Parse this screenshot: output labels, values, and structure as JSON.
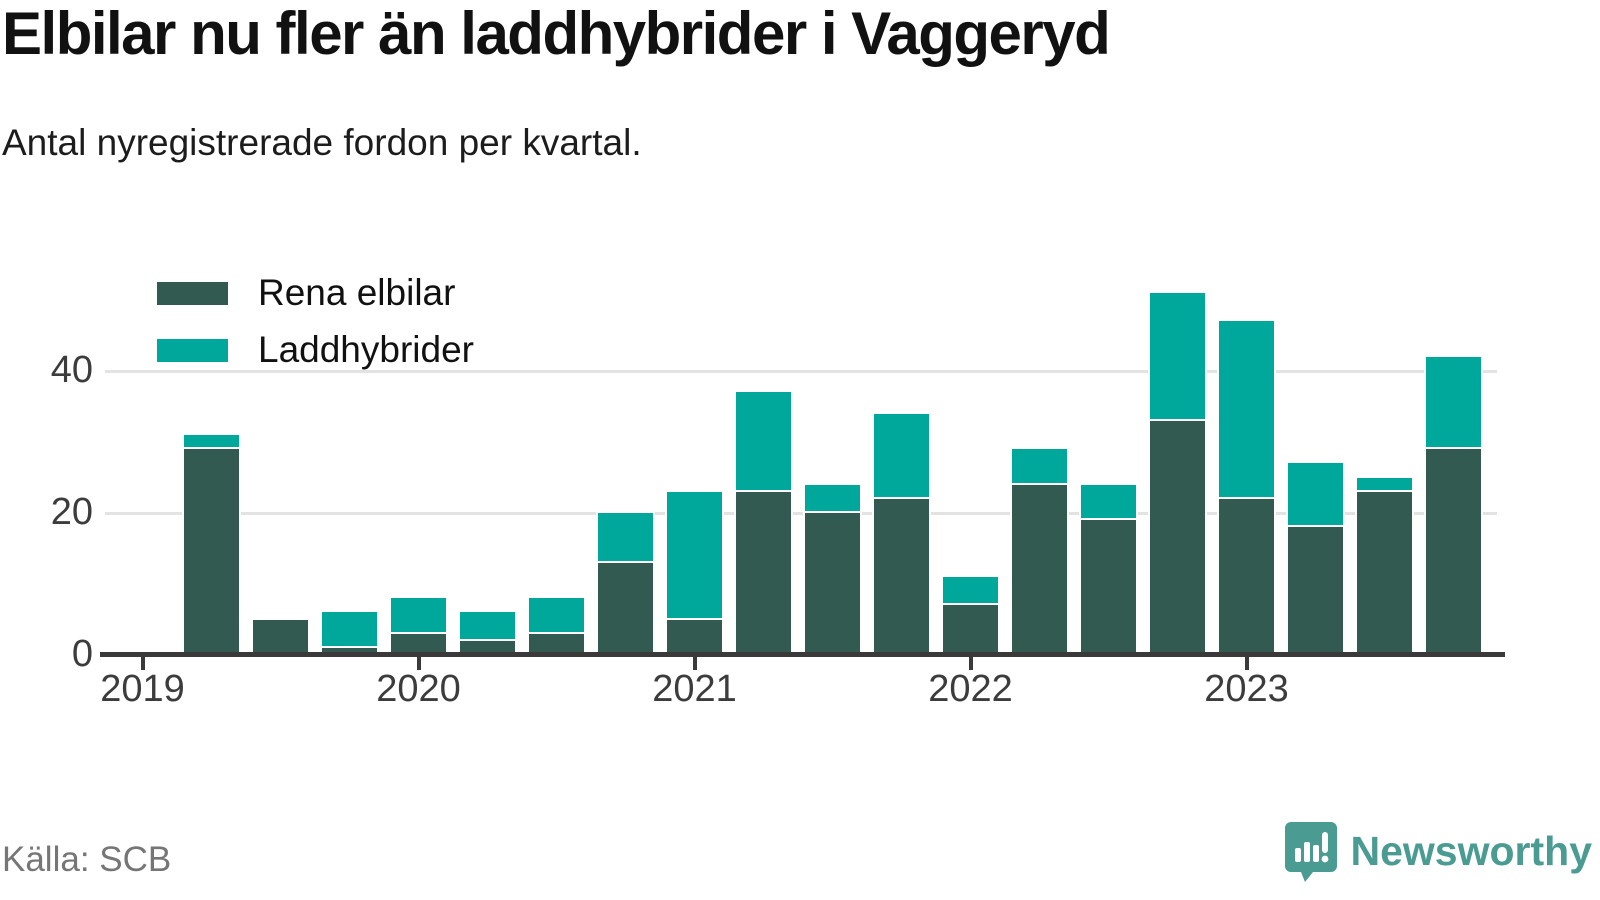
{
  "header": {
    "title": "Elbilar nu fler än laddhybrider i Vaggeryd",
    "subtitle": "Antal nyregistrerade fordon per kvartal."
  },
  "chart_data": {
    "type": "bar",
    "stacked": true,
    "title": "Elbilar nu fler än laddhybrider i Vaggeryd",
    "subtitle": "Antal nyregistrerade fordon per kvartal.",
    "categories": [
      "2019 Q1",
      "2019 Q2",
      "2019 Q3",
      "2019 Q4",
      "2020 Q1",
      "2020 Q2",
      "2020 Q3",
      "2020 Q4",
      "2021 Q1",
      "2021 Q2",
      "2021 Q3",
      "2021 Q4",
      "2022 Q1",
      "2022 Q2",
      "2022 Q3",
      "2022 Q4",
      "2023 Q1",
      "2023 Q2",
      "2023 Q3",
      "2023 Q4"
    ],
    "series": [
      {
        "name": "Rena elbilar",
        "color": "#325a50",
        "values": [
          0,
          29,
          5,
          1,
          3,
          2,
          3,
          13,
          5,
          23,
          20,
          22,
          7,
          24,
          19,
          33,
          22,
          18,
          23,
          29
        ]
      },
      {
        "name": "Laddhybrider",
        "color": "#00a79b",
        "values": [
          0,
          2,
          0,
          5,
          5,
          4,
          5,
          7,
          18,
          14,
          4,
          12,
          4,
          5,
          5,
          18,
          25,
          9,
          2,
          13
        ]
      }
    ],
    "totals": [
      0,
      31,
      5,
      6,
      8,
      6,
      8,
      20,
      23,
      37,
      24,
      34,
      11,
      29,
      24,
      51,
      47,
      27,
      25,
      42
    ],
    "x_tick_labels": [
      "2019",
      "2020",
      "2021",
      "2022",
      "2023"
    ],
    "y_ticks": [
      0,
      20,
      40
    ],
    "ylim": [
      0,
      56
    ],
    "grid": "horizontal",
    "legend_position": "top-left"
  },
  "legend": {
    "items": [
      {
        "label": "Rena elbilar",
        "color": "#325a50"
      },
      {
        "label": "Laddhybrider",
        "color": "#00a79b"
      }
    ]
  },
  "footer": {
    "source": "Källa: SCB",
    "brand": "Newsworthy"
  },
  "colors": {
    "elbilar": "#325a50",
    "laddhybrider": "#00a79b",
    "axis": "#3a3a3a",
    "gridline": "#e3e3e3",
    "brand": "#4a9c93",
    "source_text": "#767676"
  }
}
